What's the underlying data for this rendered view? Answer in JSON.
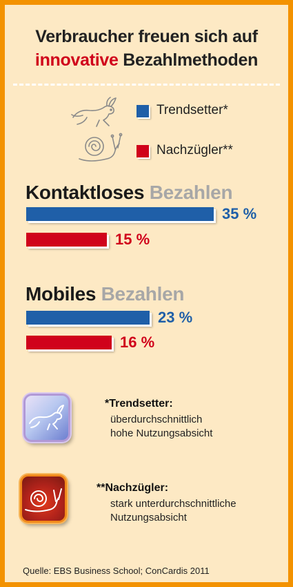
{
  "title": {
    "line1": "Verbraucher freuen sich auf",
    "line2_accent": "innovative",
    "line2_rest": " Bezahlmethoden"
  },
  "legend": [
    {
      "label": "Trendsetter*",
      "color": "#1f5fa8",
      "icon": "hare-icon"
    },
    {
      "label": "Nachzügler**",
      "color": "#d0021b",
      "icon": "snail-icon"
    }
  ],
  "chart_data": [
    {
      "type": "bar",
      "title_main": "Kontaktloses",
      "title_muted": "Bezahlen",
      "series": [
        {
          "name": "Trendsetter*",
          "value": 35,
          "label": "35 %"
        },
        {
          "name": "Nachzügler**",
          "value": 15,
          "label": "15 %"
        }
      ]
    },
    {
      "type": "bar",
      "title_main": "Mobiles",
      "title_muted": "Bezahlen",
      "series": [
        {
          "name": "Trendsetter*",
          "value": 23,
          "label": "23 %"
        },
        {
          "name": "Nachzügler**",
          "value": 16,
          "label": "16 %"
        }
      ]
    }
  ],
  "notes": [
    {
      "title": "*Trendsetter:",
      "lines": [
        "überdurchschnittlich",
        "hohe Nutzungsabsicht"
      ],
      "icon": "hare-icon"
    },
    {
      "title": "**Nachzügler:",
      "lines": [
        "stark unterdurchschnittliche",
        "Nutzungsabsicht"
      ],
      "icon": "snail-icon"
    }
  ],
  "source": "Quelle: EBS Business School; ConCardis 2011",
  "colors": {
    "trendsetter": "#1f5fa8",
    "nachzuegler": "#d0021b",
    "frame": "#f39200",
    "background": "#fde9c4"
  }
}
